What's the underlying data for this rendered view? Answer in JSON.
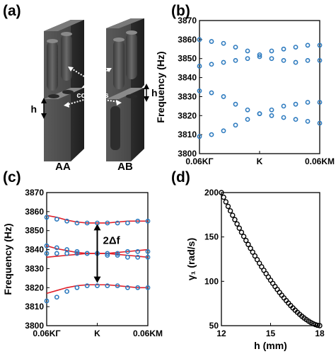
{
  "panels": {
    "a": "(a)",
    "b": "(b)",
    "c": "(c)",
    "d": "(d)"
  },
  "schematic": {
    "left_label": "AA",
    "right_label": "AB",
    "h_left": "h",
    "h_right": "h",
    "air_label_1": "air",
    "air_label_2": "columns"
  },
  "chart_data": [
    {
      "id": "b",
      "type": "scatter",
      "ylabel": "Frequency (Hz)",
      "ylim": [
        3800,
        3870
      ],
      "yticks": [
        3800,
        3810,
        3820,
        3830,
        3840,
        3850,
        3860,
        3870
      ],
      "xtick_labels": [
        "0.06KΓ",
        "K",
        "0.06KM"
      ],
      "x": [
        -1,
        -0.8,
        -0.6,
        -0.4,
        -0.2,
        0,
        0.2,
        0.4,
        0.6,
        0.8,
        1
      ],
      "series": [
        {
          "values": [
            3860,
            3859,
            3858,
            3856,
            3854,
            3852,
            3854,
            3855,
            3856,
            3857,
            3857
          ]
        },
        {
          "values": [
            3846,
            3847,
            3848,
            3849,
            3850,
            3851,
            3850,
            3849,
            3848,
            3849,
            3849
          ]
        },
        {
          "values": [
            3833,
            3832,
            3830,
            3826,
            3823,
            3821,
            3823,
            3825,
            3826,
            3827,
            3827
          ]
        },
        {
          "values": [
            3809,
            3810,
            3812,
            3815,
            3818,
            3821,
            3820,
            3819,
            3818,
            3817,
            3816
          ]
        }
      ],
      "marker_color": "#2e7bbf"
    },
    {
      "id": "c",
      "type": "line",
      "ylabel": "Frequency (Hz)",
      "ylim": [
        3800,
        3870
      ],
      "yticks": [
        3800,
        3810,
        3820,
        3830,
        3840,
        3850,
        3860,
        3870
      ],
      "xtick_labels": [
        "0.06KΓ",
        "K",
        "0.06KM"
      ],
      "annotation": "2Δf",
      "x": [
        -1,
        -0.8,
        -0.6,
        -0.4,
        -0.2,
        0,
        0.2,
        0.4,
        0.6,
        0.8,
        1
      ],
      "series": [
        {
          "values": [
            3857,
            3856,
            3855,
            3854,
            3854,
            3854,
            3854,
            3854,
            3854,
            3855,
            3855
          ]
        },
        {
          "values": [
            3842,
            3841,
            3840,
            3839,
            3838,
            3838,
            3838,
            3838,
            3839,
            3839,
            3839
          ]
        },
        {
          "values": [
            3838,
            3838,
            3838,
            3838,
            3838,
            3838,
            3837,
            3837,
            3836,
            3836,
            3836
          ]
        },
        {
          "values": [
            3813,
            3815,
            3818,
            3820,
            3821,
            3821,
            3821,
            3821,
            3820,
            3820,
            3820
          ]
        }
      ],
      "fits": [
        {
          "values": [
            3858,
            3857,
            3855.5,
            3854.5,
            3854,
            3854,
            3854,
            3854.5,
            3855,
            3855,
            3855
          ]
        },
        {
          "values": [
            3842,
            3840.5,
            3839.5,
            3838.5,
            3838,
            3838,
            3838,
            3838.5,
            3839,
            3839.5,
            3840
          ]
        },
        {
          "values": [
            3836,
            3836.5,
            3837,
            3837.5,
            3838,
            3838,
            3838,
            3837.5,
            3837,
            3836.5,
            3836
          ]
        },
        {
          "values": [
            3817,
            3818.5,
            3820,
            3821,
            3821.5,
            3821.5,
            3821.5,
            3821,
            3820.5,
            3820,
            3820
          ]
        }
      ],
      "marker_color": "#2e7bbf",
      "fit_color": "#e0202a"
    },
    {
      "id": "d",
      "type": "scatter",
      "xlabel": "h (mm)",
      "ylabel": "γ₁ (rad/s)",
      "xlim": [
        12,
        18
      ],
      "ylim": [
        50,
        200
      ],
      "xticks": [
        12,
        15,
        18
      ],
      "yticks": [
        50,
        100,
        150,
        200
      ],
      "curve": {
        "x0": 12,
        "x1": 18,
        "y0": 200,
        "y1": 50,
        "n": 45
      },
      "marker_color": "#000000"
    }
  ]
}
